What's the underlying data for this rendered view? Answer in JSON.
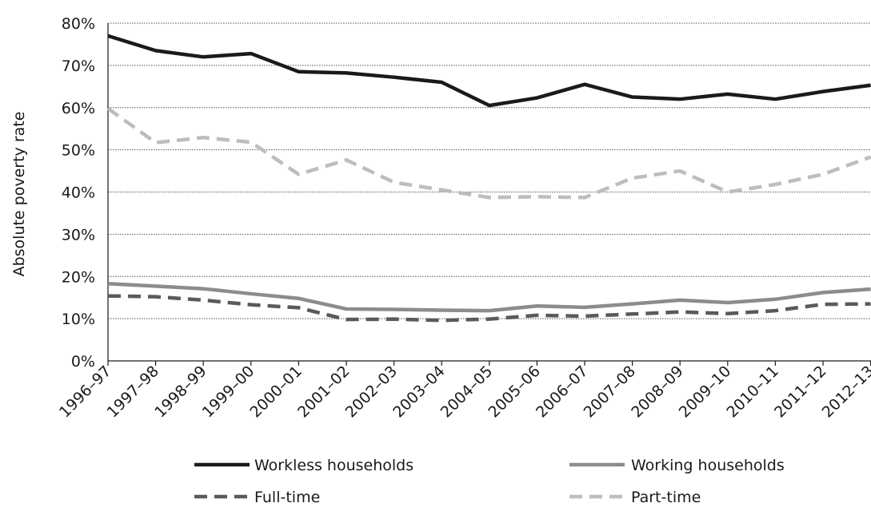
{
  "chart_data": {
    "type": "line",
    "title": "",
    "xlabel": "",
    "ylabel": "Absolute poverty rate",
    "ylim": [
      0,
      80
    ],
    "y_ticks": [
      0,
      10,
      20,
      30,
      40,
      50,
      60,
      70,
      80
    ],
    "y_tick_labels": [
      "0%",
      "10%",
      "20%",
      "30%",
      "40%",
      "50%",
      "60%",
      "70%",
      "80%"
    ],
    "grid": true,
    "legend_position": "bottom",
    "categories": [
      "1996–97",
      "1997–98",
      "1998–99",
      "1999–00",
      "2000–01",
      "2001–02",
      "2002–03",
      "2003–04",
      "2004–05",
      "2005–06",
      "2006–07",
      "2007–08",
      "2008–09",
      "2009–10",
      "2010–11",
      "2011–12",
      "2012–13"
    ],
    "series": [
      {
        "name": "Workless households",
        "color": "#1a1a1a",
        "line_style": "solid",
        "values": [
          77,
          73.5,
          72,
          72.8,
          68.5,
          68.2,
          67.2,
          66,
          60.5,
          62.3,
          65.5,
          62.5,
          62,
          63.2,
          62,
          63.8,
          65.3
        ]
      },
      {
        "name": "Working households",
        "color": "#8c8c8c",
        "line_style": "solid",
        "values": [
          18.3,
          17.7,
          17.1,
          15.9,
          14.8,
          12.3,
          12.2,
          12,
          11.9,
          13,
          12.7,
          13.5,
          14.4,
          13.8,
          14.6,
          16.2,
          17
        ]
      },
      {
        "name": "Full-time",
        "color": "#5a5a5a",
        "line_style": "dashed",
        "values": [
          15.4,
          15.2,
          14.4,
          13.3,
          12.6,
          9.8,
          9.9,
          9.6,
          9.9,
          10.8,
          10.6,
          11.1,
          11.6,
          11.2,
          11.9,
          13.4,
          13.5
        ]
      },
      {
        "name": "Part-time",
        "color": "#bdbdbd",
        "line_style": "dashed",
        "values": [
          59.8,
          51.7,
          52.9,
          51.8,
          44.2,
          47.6,
          42.3,
          40.5,
          38.7,
          38.9,
          38.7,
          43.3,
          45,
          40,
          41.8,
          44.2,
          48.3
        ]
      }
    ]
  }
}
